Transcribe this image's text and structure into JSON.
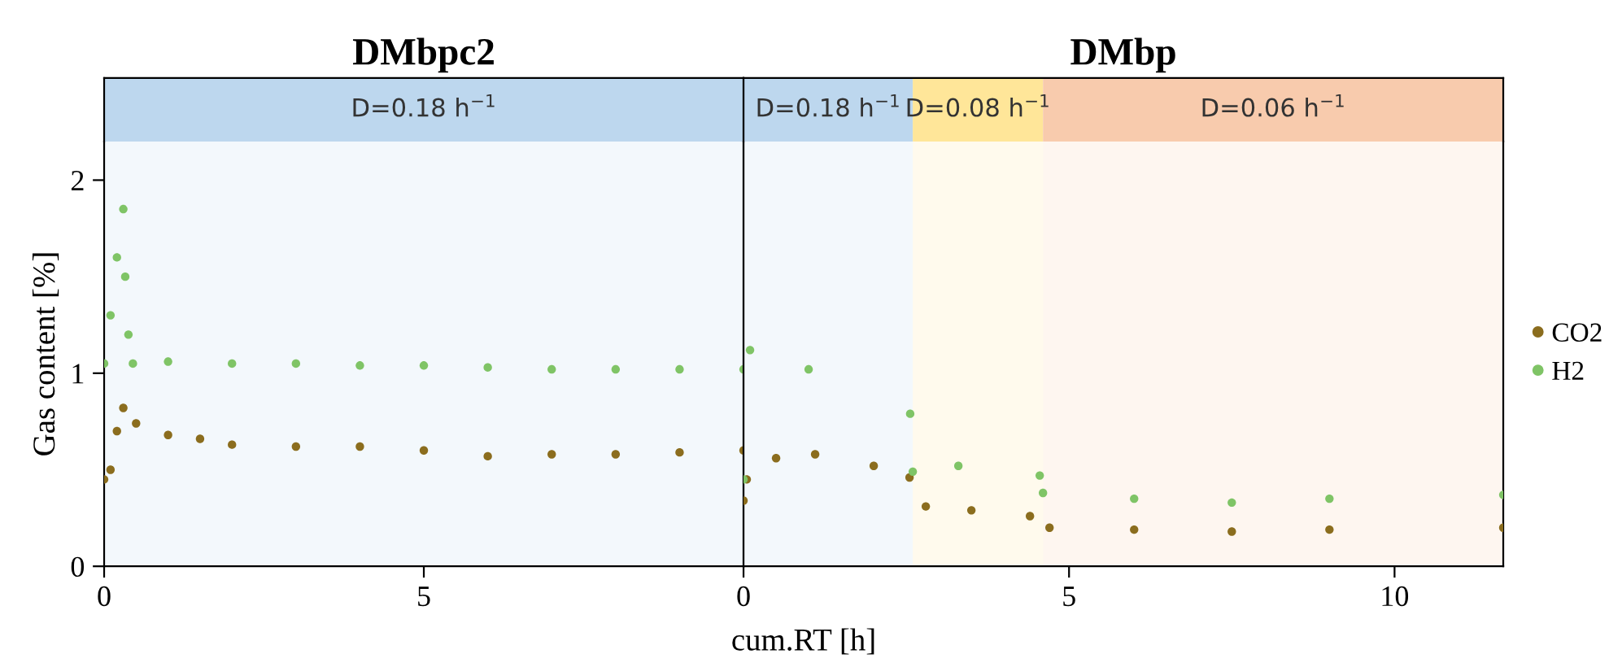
{
  "chart_data": [
    {
      "type": "scatter",
      "title": "DMbpc2",
      "xlabel": "cum.RT [h]",
      "ylabel": "Gas content [%]",
      "xlim": [
        0,
        10
      ],
      "xticks": [
        0,
        5
      ],
      "ylim": [
        0,
        2.2
      ],
      "yticks": [
        0,
        1,
        2
      ],
      "marker": "circle",
      "grid": false,
      "bands": [
        {
          "axis": "x",
          "from": 0,
          "to": 10,
          "label": "D=0.18 h$^{−1}$",
          "color": "#bdd7ee"
        }
      ],
      "series": [
        {
          "color": "#8b6d1e",
          "x": [
            0,
            0.1,
            0.2,
            0.3,
            0.5,
            1,
            1.5,
            2,
            3,
            4,
            5,
            6,
            7,
            8,
            9,
            10
          ],
          "values": [
            0.45,
            0.5,
            0.7,
            0.82,
            0.74,
            0.68,
            0.66,
            0.63,
            0.62,
            0.62,
            0.6,
            0.57,
            0.58,
            0.58,
            0.59,
            0.6
          ]
        },
        {
          "color": "#7fc466",
          "x": [
            0,
            0.1,
            0.2,
            0.3,
            0.33,
            0.38,
            0.45,
            1,
            2,
            3,
            4,
            5,
            6,
            7,
            8,
            9,
            10
          ],
          "values": [
            1.05,
            1.3,
            1.6,
            1.85,
            1.5,
            1.2,
            1.05,
            1.06,
            1.05,
            1.05,
            1.04,
            1.04,
            1.03,
            1.02,
            1.02,
            1.02,
            1.02
          ]
        }
      ]
    },
    {
      "type": "scatter",
      "title": "DMbp",
      "xlim": [
        0,
        11.67
      ],
      "xticks": [
        0,
        5,
        10
      ],
      "ylim": [
        0,
        2.2
      ],
      "tick_labels": "x",
      "marker": "circle",
      "grid": false,
      "legend": "right",
      "bands": [
        {
          "axis": "x",
          "from": 0,
          "to": 2.6,
          "label": "D=0.18 h$^{−1}$",
          "color": "#bdd7ee"
        },
        {
          "axis": "x",
          "from": 2.6,
          "to": 4.6,
          "label": "D=0.08 h$^{−1}$",
          "color": "#ffe699"
        },
        {
          "axis": "x",
          "from": 4.6,
          "to": 11.67,
          "label": "D=0.06 h$^{−1}$",
          "color": "#f8cbad"
        }
      ],
      "series": [
        {
          "name": "CO2",
          "color": "#8b6d1e",
          "x": [
            0,
            0.05,
            0.5,
            1.1,
            2,
            2.55,
            2.8,
            3.5,
            4.4,
            4.7,
            6,
            7.5,
            9,
            11.67
          ],
          "values": [
            0.34,
            0.45,
            0.56,
            0.58,
            0.52,
            0.46,
            0.31,
            0.29,
            0.26,
            0.2,
            0.19,
            0.18,
            0.19,
            0.2
          ]
        },
        {
          "name": "H2",
          "color": "#7fc466",
          "x": [
            0,
            0.1,
            1,
            2.56,
            2.6,
            3.3,
            4.55,
            4.6,
            6,
            7.5,
            9,
            11.67
          ],
          "values": [
            0.45,
            1.12,
            1.02,
            0.79,
            0.49,
            0.52,
            0.47,
            0.38,
            0.35,
            0.33,
            0.35,
            0.37
          ]
        }
      ]
    }
  ]
}
